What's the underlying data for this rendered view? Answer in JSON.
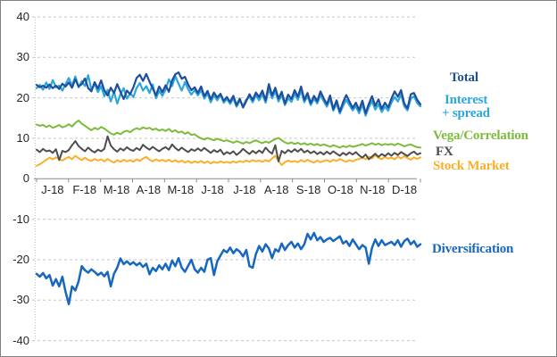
{
  "window": {
    "background": "#FFFFFF",
    "border_color": "#7F7F7F"
  },
  "colors": {
    "grid": "#C6C6C6",
    "axis": "#898989",
    "tick_text": "#262626"
  },
  "legend": {
    "total": "Total",
    "interest_line1": "Interest",
    "interest_line2": "+ spread",
    "vega": "Vega/Correlation",
    "fx": "FX",
    "stock": "Stock Market",
    "diversification": "Diversification"
  },
  "chart_data": {
    "type": "line",
    "title": "",
    "xlabel": "",
    "ylabel": "",
    "grid": true,
    "legend_position": "right",
    "x_axis": {
      "categories": [
        "J-18",
        "F-18",
        "M-18",
        "A-18",
        "M-18",
        "J-18",
        "J-18",
        "A-18",
        "S-18",
        "O-18",
        "N-18",
        "D-18"
      ]
    },
    "y_axis": {
      "tick_labels": [
        "40",
        "30",
        "20",
        "10",
        "0",
        "-10",
        "-20",
        "-30",
        "-40"
      ],
      "ticks": [
        40,
        30,
        20,
        10,
        0,
        -10,
        -20,
        -30,
        -40
      ],
      "ylim": [
        -40,
        40
      ]
    },
    "series": [
      {
        "name": "Total",
        "color": "#1F4E9C",
        "values": [
          23.2,
          22.6,
          23.0,
          22.5,
          23.3,
          22.4,
          23.0,
          22.2,
          23.5,
          22.8,
          23.8,
          22.5,
          24.6,
          22.8,
          23.4,
          24.8,
          22.4,
          21.6,
          23.9,
          22.3,
          24.3,
          21.8,
          20.6,
          22.5,
          21.2,
          23.4,
          21.5,
          19.7,
          21.8,
          20.9,
          22.6,
          24.9,
          25.7,
          24.2,
          25.9,
          24.0,
          22.3,
          20.6,
          22.8,
          21.4,
          23.1,
          21.5,
          24.3,
          25.8,
          26.3,
          24.7,
          25.2,
          23.3,
          21.9,
          22.6,
          21.2,
          22.8,
          20.4,
          21.7,
          19.6,
          21.3,
          20.1,
          21.0,
          19.3,
          20.2,
          19.0,
          20.5,
          18.2,
          19.8,
          17.6,
          19.2,
          20.9,
          19.5,
          21.3,
          20.2,
          21.8,
          19.4,
          23.4,
          20.6,
          22.5,
          19.8,
          21.5,
          18.6,
          20.8,
          19.7,
          21.9,
          20.3,
          22.8,
          19.5,
          21.2,
          18.7,
          20.5,
          19.2,
          21.6,
          19.9,
          18.4,
          20.6,
          17.2,
          19.4,
          16.6,
          18.9,
          20.7,
          19.1,
          17.5,
          18.8,
          17.0,
          19.3,
          16.2,
          18.5,
          20.4,
          18.0,
          19.6,
          17.3,
          18.8,
          17.6,
          19.8,
          21.6,
          20.3,
          21.9,
          18.6,
          17.4,
          20.9,
          21.2,
          19.5,
          18.4
        ]
      },
      {
        "name": "Interest + spread",
        "color": "#2AA7DF",
        "values": [
          22.4,
          23.2,
          22.0,
          23.8,
          22.2,
          24.4,
          22.6,
          23.0,
          21.8,
          23.4,
          24.9,
          23.0,
          25.3,
          22.6,
          24.1,
          22.9,
          25.6,
          22.0,
          23.5,
          21.4,
          22.9,
          20.4,
          22.0,
          19.1,
          21.5,
          18.6,
          20.9,
          22.4,
          19.8,
          21.1,
          20.2,
          22.4,
          23.7,
          21.8,
          22.9,
          21.2,
          23.3,
          19.9,
          21.7,
          20.5,
          22.0,
          24.6,
          22.9,
          25.4,
          23.5,
          21.8,
          23.9,
          22.1,
          20.8,
          21.9,
          20.6,
          21.9,
          19.8,
          21.1,
          18.9,
          20.6,
          19.4,
          20.8,
          18.8,
          19.7,
          18.5,
          19.9,
          17.8,
          19.3,
          18.0,
          19.6,
          20.3,
          18.9,
          20.6,
          19.4,
          20.9,
          18.8,
          22.2,
          19.9,
          21.6,
          19.1,
          20.7,
          18.2,
          19.9,
          19.0,
          21.0,
          19.5,
          21.8,
          18.9,
          20.4,
          18.2,
          19.8,
          18.6,
          20.7,
          19.2,
          17.8,
          19.7,
          16.8,
          18.6,
          16.1,
          18.0,
          19.5,
          18.2,
          16.9,
          17.9,
          16.2,
          18.3,
          15.6,
          17.7,
          19.2,
          17.1,
          18.4,
          16.5,
          17.8,
          16.8,
          18.8,
          20.2,
          19.1,
          20.8,
          17.9,
          16.9,
          19.8,
          20.4,
          18.7,
          17.9
        ]
      },
      {
        "name": "Vega/Correlation",
        "color": "#7DBB3C",
        "values": [
          13.4,
          13.1,
          13.3,
          12.8,
          13.2,
          12.6,
          12.9,
          13.3,
          12.7,
          13.0,
          13.5,
          12.9,
          13.8,
          14.4,
          13.6,
          13.1,
          12.5,
          12.0,
          12.6,
          12.2,
          12.8,
          12.4,
          11.8,
          11.2,
          10.9,
          11.4,
          11.0,
          11.6,
          11.9,
          11.5,
          12.1,
          12.5,
          12.2,
          12.7,
          12.4,
          12.6,
          12.1,
          12.4,
          11.9,
          12.2,
          11.8,
          12.3,
          11.6,
          12.0,
          11.4,
          11.7,
          11.1,
          11.5,
          10.8,
          11.0,
          10.4,
          10.0,
          9.7,
          10.1,
          9.8,
          9.5,
          9.9,
          9.6,
          9.3,
          9.5,
          9.2,
          8.9,
          9.3,
          9.0,
          8.7,
          9.1,
          8.8,
          9.2,
          9.5,
          9.1,
          8.8,
          9.2,
          8.9,
          9.4,
          9.8,
          10.1,
          9.5,
          9.0,
          8.7,
          9.0,
          8.6,
          8.9,
          8.5,
          8.8,
          8.4,
          8.7,
          8.3,
          8.6,
          8.2,
          8.5,
          8.2,
          7.9,
          8.3,
          8.0,
          7.7,
          8.1,
          7.8,
          8.2,
          7.9,
          8.1,
          8.3,
          8.6,
          8.2,
          8.5,
          8.8,
          8.4,
          8.7,
          8.3,
          8.6,
          8.4,
          8.6,
          8.3,
          8.7,
          8.4,
          8.0,
          8.3,
          8.5,
          8.1,
          7.8,
          7.7
        ]
      },
      {
        "name": "FX",
        "color": "#4D4D4D",
        "values": [
          7.2,
          6.6,
          7.4,
          6.8,
          7.0,
          6.4,
          7.3,
          4.6,
          6.9,
          6.6,
          7.1,
          8.3,
          9.3,
          8.1,
          7.4,
          6.8,
          7.7,
          7.0,
          6.5,
          7.2,
          6.8,
          7.4,
          10.5,
          8.2,
          7.3,
          6.7,
          7.5,
          7.0,
          7.8,
          7.2,
          6.9,
          7.6,
          7.1,
          8.4,
          7.7,
          7.2,
          7.9,
          7.3,
          6.8,
          7.4,
          7.8,
          7.2,
          8.5,
          7.6,
          7.0,
          7.7,
          7.1,
          6.6,
          7.3,
          6.9,
          7.5,
          6.9,
          7.6,
          7.0,
          6.4,
          7.1,
          6.6,
          7.2,
          6.0,
          6.6,
          6.2,
          6.8,
          5.9,
          6.5,
          7.4,
          6.7,
          6.1,
          6.9,
          6.3,
          7.0,
          6.4,
          7.7,
          6.8,
          6.2,
          8.3,
          4.3,
          6.9,
          6.3,
          7.1,
          6.6,
          7.3,
          6.7,
          7.4,
          6.5,
          7.0,
          6.3,
          6.8,
          6.1,
          6.6,
          6.0,
          6.7,
          6.1,
          6.8,
          6.2,
          5.7,
          6.4,
          5.9,
          6.5,
          6.0,
          6.6,
          5.8,
          5.2,
          6.0,
          4.8,
          5.5,
          6.2,
          5.4,
          6.1,
          5.6,
          6.3,
          5.7,
          6.4,
          5.9,
          6.6,
          6.1,
          5.6,
          6.3,
          6.7,
          6.0,
          6.3
        ]
      },
      {
        "name": "Stock Market",
        "color": "#FCAE28",
        "values": [
          3.2,
          3.6,
          4.1,
          4.7,
          5.2,
          4.8,
          5.3,
          4.9,
          4.5,
          5.0,
          5.4,
          4.8,
          5.7,
          5.1,
          4.6,
          5.2,
          4.7,
          4.4,
          4.9,
          4.5,
          4.8,
          4.3,
          4.9,
          4.4,
          4.0,
          4.6,
          4.2,
          4.7,
          4.3,
          4.6,
          4.2,
          4.8,
          4.4,
          5.0,
          5.4,
          4.7,
          4.3,
          4.8,
          4.4,
          4.7,
          4.3,
          4.7,
          4.2,
          4.6,
          4.1,
          4.5,
          4.0,
          4.4,
          3.9,
          4.3,
          4.0,
          4.4,
          3.9,
          4.3,
          3.8,
          4.2,
          3.9,
          4.3,
          4.0,
          4.2,
          3.9,
          4.3,
          4.0,
          4.4,
          4.1,
          4.5,
          4.2,
          4.6,
          4.3,
          4.5,
          4.2,
          4.6,
          4.3,
          5.0,
          5.7,
          4.4,
          3.4,
          4.1,
          4.5,
          4.2,
          4.4,
          4.1,
          4.6,
          4.2,
          4.7,
          4.3,
          4.0,
          4.5,
          4.1,
          4.4,
          4.6,
          4.2,
          4.7,
          4.4,
          4.9,
          4.5,
          4.2,
          4.6,
          4.3,
          4.7,
          4.9,
          5.3,
          4.8,
          5.5,
          5.0,
          5.8,
          5.2,
          4.8,
          5.4,
          5.0,
          5.2,
          4.8,
          5.5,
          5.0,
          5.6,
          5.1,
          4.7,
          5.3,
          4.9,
          5.3
        ]
      },
      {
        "name": "Diversification",
        "color": "#1767C0",
        "values": [
          -23.5,
          -24.2,
          -23.3,
          -24.6,
          -23.8,
          -26.4,
          -24.8,
          -26.6,
          -24.2,
          -28.0,
          -31.0,
          -26.6,
          -27.6,
          -25.4,
          -21.6,
          -22.6,
          -23.2,
          -22.4,
          -23.0,
          -23.8,
          -23.2,
          -24.1,
          -23.0,
          -26.6,
          -23.5,
          -22.0,
          -19.7,
          -21.1,
          -20.4,
          -21.2,
          -20.6,
          -21.4,
          -20.8,
          -21.8,
          -21.0,
          -23.6,
          -22.0,
          -22.8,
          -21.4,
          -22.4,
          -21.0,
          -22.6,
          -20.2,
          -21.6,
          -19.6,
          -22.0,
          -23.0,
          -21.5,
          -20.0,
          -22.4,
          -23.2,
          -22.0,
          -23.0,
          -20.0,
          -19.6,
          -23.8,
          -20.4,
          -19.0,
          -17.6,
          -18.2,
          -17.0,
          -18.4,
          -17.4,
          -18.0,
          -19.2,
          -17.6,
          -21.6,
          -22.0,
          -18.6,
          -16.6,
          -18.0,
          -16.2,
          -17.2,
          -19.6,
          -17.4,
          -18.0,
          -16.0,
          -17.6,
          -16.4,
          -15.6,
          -17.0,
          -16.0,
          -17.4,
          -16.2,
          -13.6,
          -15.0,
          -13.4,
          -15.2,
          -14.4,
          -15.6,
          -15.0,
          -14.6,
          -15.4,
          -14.8,
          -14.2,
          -16.0,
          -15.4,
          -16.6,
          -15.0,
          -16.2,
          -17.4,
          -16.4,
          -17.0,
          -21.0,
          -17.0,
          -15.0,
          -16.6,
          -15.2,
          -16.4,
          -16.0,
          -15.6,
          -16.4,
          -15.2,
          -16.8,
          -15.4,
          -14.8,
          -16.2,
          -15.4,
          -16.8,
          -16.2
        ]
      }
    ]
  }
}
